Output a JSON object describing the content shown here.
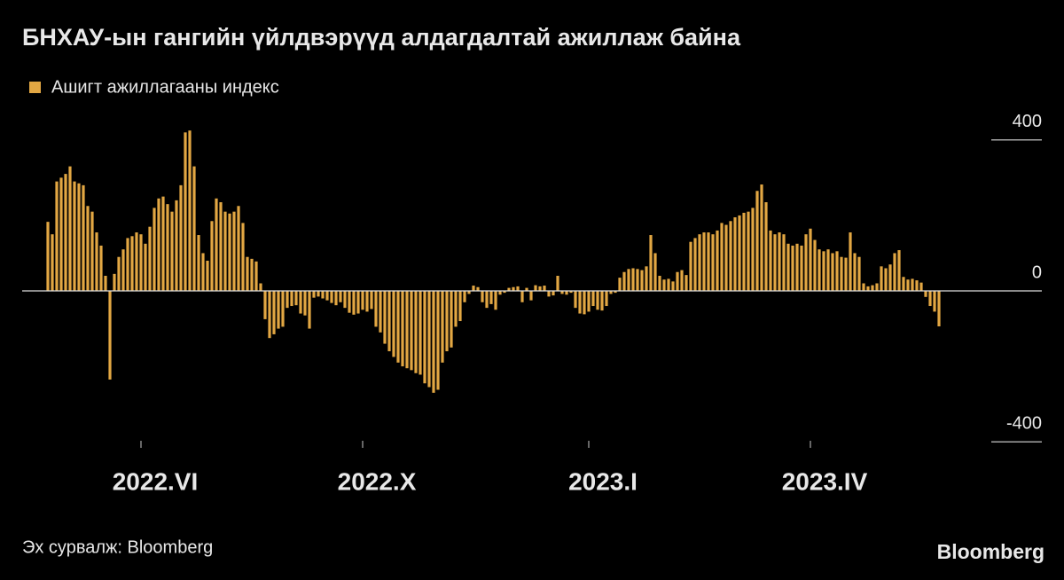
{
  "chart_data": {
    "type": "bar",
    "title": "БНХАУ-ын гангийн үйлдвэрүүд алдагдалтай ажиллаж байна",
    "source": "Эх сурвалж: Bloomberg",
    "logo": "Bloomberg",
    "legend": "top-left",
    "ylim": [
      -420,
      440
    ],
    "yticks": [
      -400,
      0,
      400
    ],
    "categories": [
      null,
      null,
      null,
      null,
      null,
      null,
      null,
      null,
      null,
      null,
      null,
      null,
      null,
      null,
      null,
      null,
      null,
      null,
      null,
      null,
      null,
      "2022.VI",
      null,
      null,
      null,
      null,
      null,
      null,
      null,
      null,
      null,
      null,
      null,
      null,
      null,
      null,
      null,
      null,
      null,
      null,
      null,
      null,
      null,
      null,
      null,
      null,
      null,
      null,
      null,
      null,
      null,
      null,
      null,
      null,
      null,
      null,
      null,
      null,
      null,
      null,
      null,
      null,
      null,
      null,
      null,
      null,
      null,
      null,
      null,
      null,
      null,
      "2022.X",
      null,
      null,
      null,
      null,
      null,
      null,
      null,
      null,
      null,
      null,
      null,
      null,
      null,
      null,
      null,
      null,
      null,
      null,
      null,
      null,
      null,
      null,
      null,
      null,
      null,
      null,
      null,
      null,
      null,
      null,
      null,
      null,
      null,
      null,
      null,
      null,
      null,
      null,
      null,
      null,
      null,
      null,
      null,
      null,
      null,
      null,
      null,
      null,
      null,
      null,
      "2023.I",
      null,
      null,
      null,
      null,
      null,
      null,
      null,
      null,
      null,
      null,
      null,
      null,
      null,
      null,
      null,
      null,
      null,
      null,
      null,
      null,
      null,
      null,
      null,
      null,
      null,
      null,
      null,
      null,
      null,
      null,
      null,
      null,
      null,
      null,
      null,
      null,
      null,
      null,
      null,
      null,
      null,
      null,
      null,
      null,
      null,
      null,
      null,
      null,
      null,
      "2023.IV",
      null,
      null,
      null,
      null,
      null,
      null,
      null,
      null,
      null,
      null,
      null,
      null,
      null,
      null,
      null,
      null,
      null,
      null,
      null,
      null,
      null,
      null,
      null,
      null,
      null,
      null,
      null,
      null,
      null
    ],
    "series": [
      {
        "name": "Ашигт ажиллагааны индекс",
        "color": "#e2a743",
        "values": [
          183,
          150,
          290,
          300,
          310,
          330,
          290,
          285,
          280,
          225,
          210,
          155,
          120,
          40,
          -235,
          45,
          90,
          110,
          140,
          145,
          155,
          150,
          125,
          170,
          220,
          245,
          250,
          230,
          210,
          240,
          280,
          420,
          425,
          330,
          148,
          100,
          80,
          185,
          245,
          235,
          210,
          205,
          210,
          225,
          180,
          90,
          85,
          78,
          20,
          -75,
          -125,
          -115,
          -100,
          -95,
          -45,
          -40,
          -38,
          -60,
          -65,
          -100,
          -18,
          -15,
          -20,
          -25,
          -32,
          -38,
          -30,
          -45,
          -58,
          -63,
          -60,
          -50,
          -55,
          -48,
          -95,
          -110,
          -140,
          -160,
          -175,
          -190,
          -200,
          -205,
          -210,
          -218,
          -222,
          -245,
          -255,
          -270,
          -262,
          -190,
          -160,
          -150,
          -95,
          -80,
          -30,
          -8,
          14,
          10,
          -30,
          -45,
          -35,
          -50,
          -10,
          -5,
          8,
          10,
          12,
          -30,
          8,
          -25,
          15,
          12,
          14,
          -15,
          -12,
          40,
          -8,
          -10,
          -5,
          -45,
          -60,
          -62,
          -55,
          -40,
          -50,
          -52,
          -40,
          -8,
          -5,
          35,
          50,
          58,
          60,
          58,
          55,
          65,
          148,
          100,
          40,
          30,
          32,
          25,
          50,
          55,
          42,
          130,
          140,
          150,
          155,
          155,
          150,
          160,
          180,
          175,
          185,
          195,
          200,
          207,
          210,
          220,
          265,
          282,
          235,
          160,
          150,
          155,
          150,
          125,
          120,
          125,
          120,
          150,
          165,
          135,
          110,
          105,
          110,
          100,
          105,
          90,
          88,
          155,
          100,
          90,
          20,
          12,
          15,
          20,
          65,
          60,
          70,
          100,
          108,
          37,
          30,
          32,
          28,
          22,
          -16,
          -40,
          -55,
          -94
        ]
      }
    ]
  }
}
